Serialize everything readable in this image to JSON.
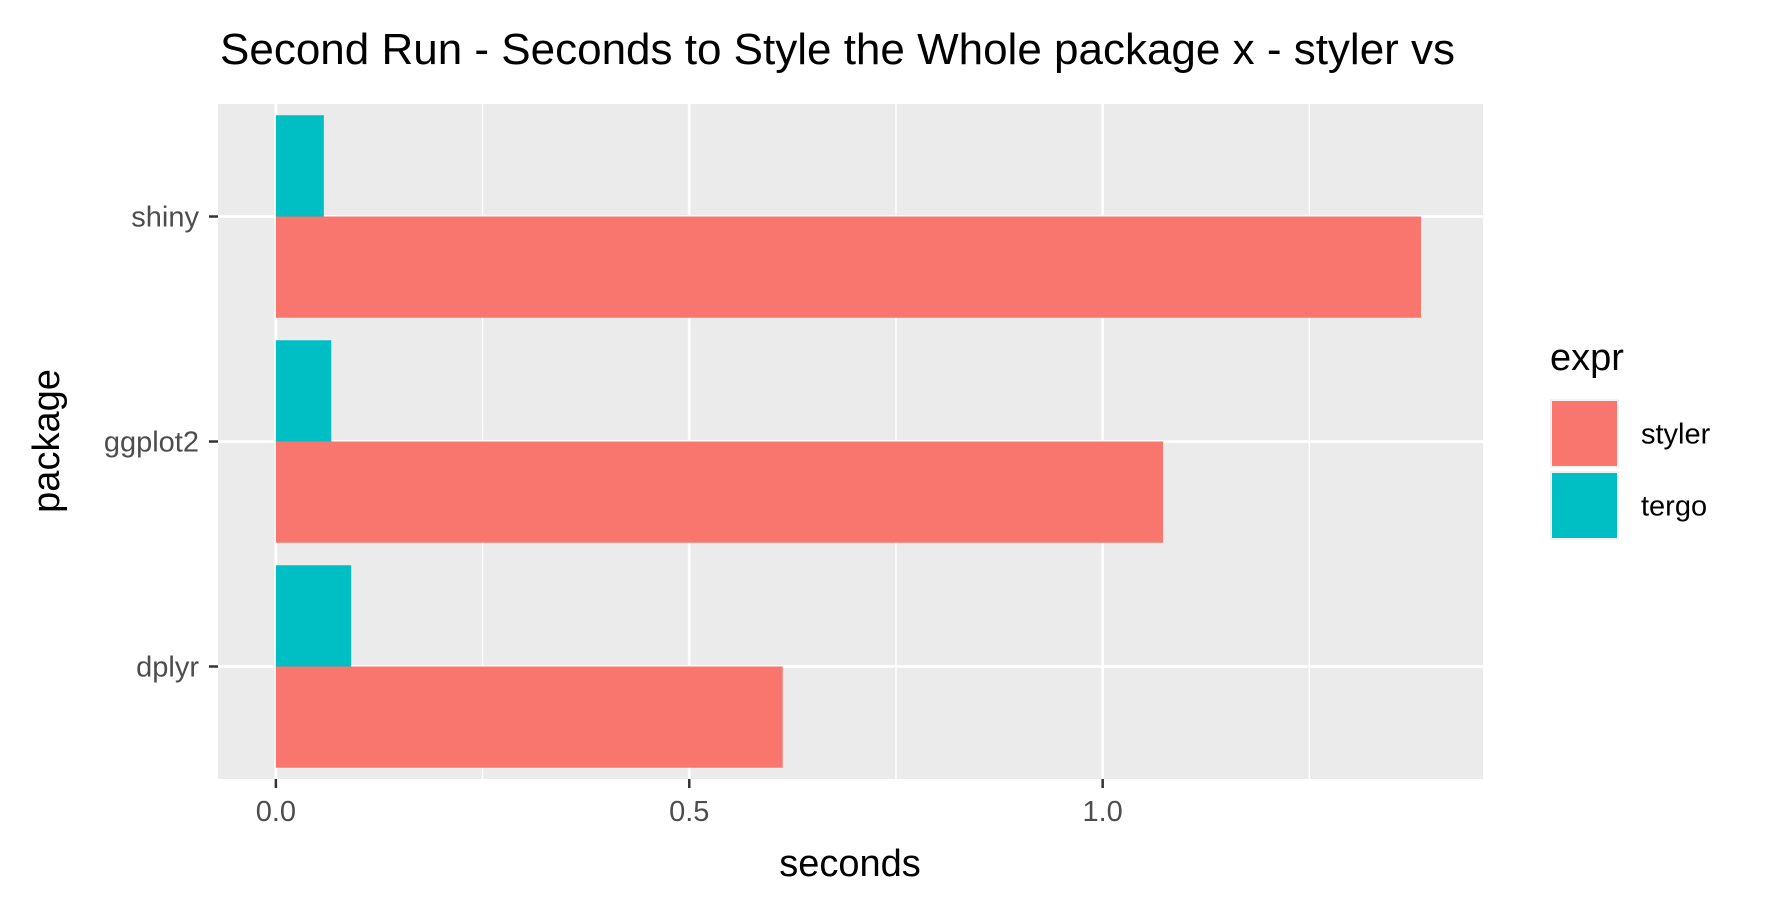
{
  "chart_data": {
    "type": "bar",
    "orientation": "horizontal",
    "position": "dodge",
    "title": "Second Run - Seconds to Style the Whole package x - styler vs",
    "xlabel": "seconds",
    "ylabel": "package",
    "categories": [
      "dplyr",
      "ggplot2",
      "shiny"
    ],
    "series": [
      {
        "name": "styler",
        "color": "#F8766D",
        "values": [
          0.613,
          1.073,
          1.385
        ]
      },
      {
        "name": "tergo",
        "color": "#00BFC4",
        "values": [
          0.091,
          0.067,
          0.058
        ]
      }
    ],
    "xlim": [
      -0.07,
      1.46
    ],
    "xticks": [
      0.0,
      0.5,
      1.0
    ],
    "xtick_labels": [
      "0.0",
      "0.5",
      "1.0"
    ],
    "grid": true,
    "legend": {
      "title": "expr",
      "position": "right"
    },
    "colors": {
      "panel_background": "#EBEBEB",
      "gridline": "#FFFFFF"
    }
  }
}
